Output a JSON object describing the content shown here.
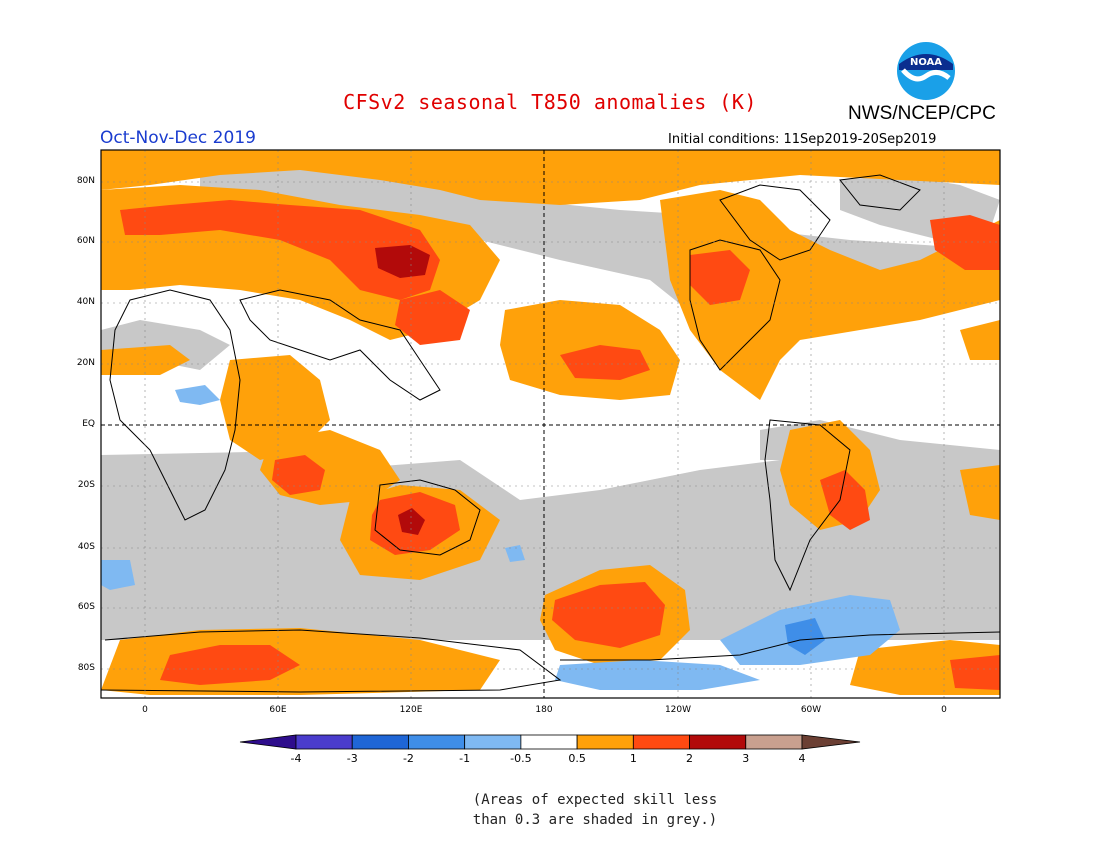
{
  "title": "CFSv2 seasonal T850 anomalies (K)",
  "agency": "NWS/NCEP/CPC",
  "period": "Oct-Nov-Dec 2019",
  "initial_conditions": "Initial conditions: 11Sep2019-20Sep2019",
  "logo_text": "NOAA",
  "lat_labels": [
    "80N",
    "60N",
    "40N",
    "20N",
    "EQ",
    "20S",
    "40S",
    "60S",
    "80S"
  ],
  "lon_labels": [
    "0",
    "60E",
    "120E",
    "180",
    "120W",
    "60W",
    "0"
  ],
  "colorbar": {
    "ticks": [
      "-4",
      "-3",
      "-2",
      "-1",
      "-0.5",
      "0.5",
      "1",
      "2",
      "3",
      "4"
    ],
    "colors": [
      "#2e0d8c",
      "#4a3ccc",
      "#1f66d6",
      "#3f8ee8",
      "#7fb9f2",
      "#ffffff",
      "#ffa10a",
      "#ff4a12",
      "#b20a0a",
      "#c9a08f",
      "#6b3f33"
    ]
  },
  "note_line1": "(Areas of expected skill less",
  "note_line2": "than 0.3 are shaded in grey.)",
  "palette": {
    "orange": "#ffa10a",
    "red": "#ff4a12",
    "darkred": "#b20a0a",
    "grey": "#c8c8c8",
    "lightblue": "#7fb9f2",
    "blue": "#3f8ee8"
  }
}
